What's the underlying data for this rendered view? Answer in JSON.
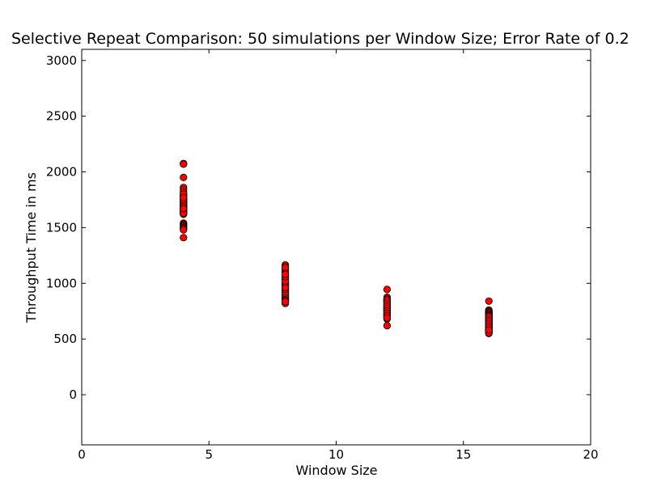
{
  "chart_data": {
    "type": "scatter",
    "title": "Selective Repeat Comparison: 50 simulations per Window Size; Error Rate of 0.2",
    "xlabel": "Window Size",
    "ylabel": "Throughput Time in ms",
    "xlim": [
      0,
      20
    ],
    "ylim": [
      -450,
      3100
    ],
    "xticks": [
      0,
      5,
      10,
      15,
      20
    ],
    "yticks": [
      0,
      500,
      1000,
      1500,
      2000,
      2500,
      3000
    ],
    "grid": false,
    "marker_color": "#ff0000",
    "marker_edge_color": "#000000",
    "series": [
      {
        "x": [
          4,
          4,
          4,
          4,
          4,
          4,
          4,
          4,
          4,
          4,
          4,
          4,
          4,
          4,
          4,
          4,
          4,
          4,
          4,
          4,
          4,
          4,
          4,
          4,
          4,
          4,
          4,
          4,
          4,
          4,
          4,
          4,
          4,
          4,
          4,
          4,
          4,
          4,
          4,
          4,
          4,
          4,
          4,
          4,
          4,
          4,
          4,
          4,
          4,
          4,
          8,
          8,
          8,
          8,
          8,
          8,
          8,
          8,
          8,
          8,
          8,
          8,
          8,
          8,
          8,
          8,
          8,
          8,
          8,
          8,
          8,
          8,
          8,
          8,
          8,
          8,
          8,
          8,
          8,
          8,
          8,
          8,
          8,
          8,
          8,
          8,
          8,
          8,
          8,
          8,
          8,
          8,
          8,
          8,
          8,
          8,
          8,
          8,
          8,
          8,
          12,
          12,
          12,
          12,
          12,
          12,
          12,
          12,
          12,
          12,
          12,
          12,
          12,
          12,
          12,
          12,
          12,
          12,
          12,
          12,
          12,
          12,
          12,
          12,
          12,
          12,
          12,
          12,
          12,
          12,
          12,
          12,
          12,
          12,
          12,
          12,
          12,
          12,
          12,
          12,
          12,
          12,
          12,
          12,
          12,
          12,
          12,
          12,
          12,
          12,
          16,
          16,
          16,
          16,
          16,
          16,
          16,
          16,
          16,
          16,
          16,
          16,
          16,
          16,
          16,
          16,
          16,
          16,
          16,
          16,
          16,
          16,
          16,
          16,
          16,
          16,
          16,
          16,
          16,
          16,
          16,
          16,
          16,
          16,
          16,
          16,
          16,
          16,
          16,
          16,
          16,
          16,
          16,
          16,
          16,
          16,
          16,
          16,
          16,
          16
        ],
        "y": [
          2075,
          2070,
          1950,
          1860,
          1840,
          1820,
          1800,
          1790,
          1780,
          1760,
          1750,
          1740,
          1730,
          1720,
          1710,
          1700,
          1690,
          1680,
          1670,
          1660,
          1650,
          1640,
          1630,
          1625,
          1620,
          1540,
          1530,
          1520,
          1510,
          1500,
          1490,
          1480,
          1410,
          1700,
          1720,
          1680,
          1660,
          1740,
          1760,
          1780,
          1800,
          1650,
          1640,
          1690,
          1710,
          1730,
          1750,
          1770,
          1630,
          1670,
          1165,
          1150,
          1120,
          1100,
          1080,
          1060,
          1040,
          1020,
          1000,
          990,
          980,
          970,
          960,
          950,
          940,
          930,
          920,
          910,
          900,
          890,
          880,
          870,
          860,
          850,
          840,
          830,
          820,
          1010,
          1030,
          1050,
          1070,
          1090,
          1110,
          1130,
          1140,
          990,
          970,
          950,
          930,
          910,
          890,
          870,
          855,
          845,
          835,
          1000,
          1020,
          1060,
          1080,
          960,
          945,
          875,
          860,
          850,
          840,
          830,
          820,
          810,
          800,
          790,
          780,
          770,
          760,
          750,
          740,
          730,
          720,
          710,
          700,
          690,
          680,
          620,
          855,
          845,
          835,
          825,
          815,
          805,
          795,
          785,
          775,
          765,
          755,
          745,
          735,
          725,
          715,
          705,
          695,
          685,
          860,
          850,
          830,
          810,
          790,
          770,
          750,
          730,
          710,
          690,
          840,
          760,
          750,
          740,
          730,
          720,
          710,
          700,
          690,
          680,
          670,
          660,
          650,
          640,
          630,
          620,
          610,
          600,
          590,
          580,
          570,
          560,
          550,
          745,
          735,
          725,
          715,
          705,
          695,
          685,
          675,
          665,
          655,
          645,
          635,
          625,
          615,
          605,
          595,
          585,
          575,
          565,
          555,
          700,
          680,
          660,
          640,
          620,
          600,
          580
        ]
      }
    ]
  }
}
